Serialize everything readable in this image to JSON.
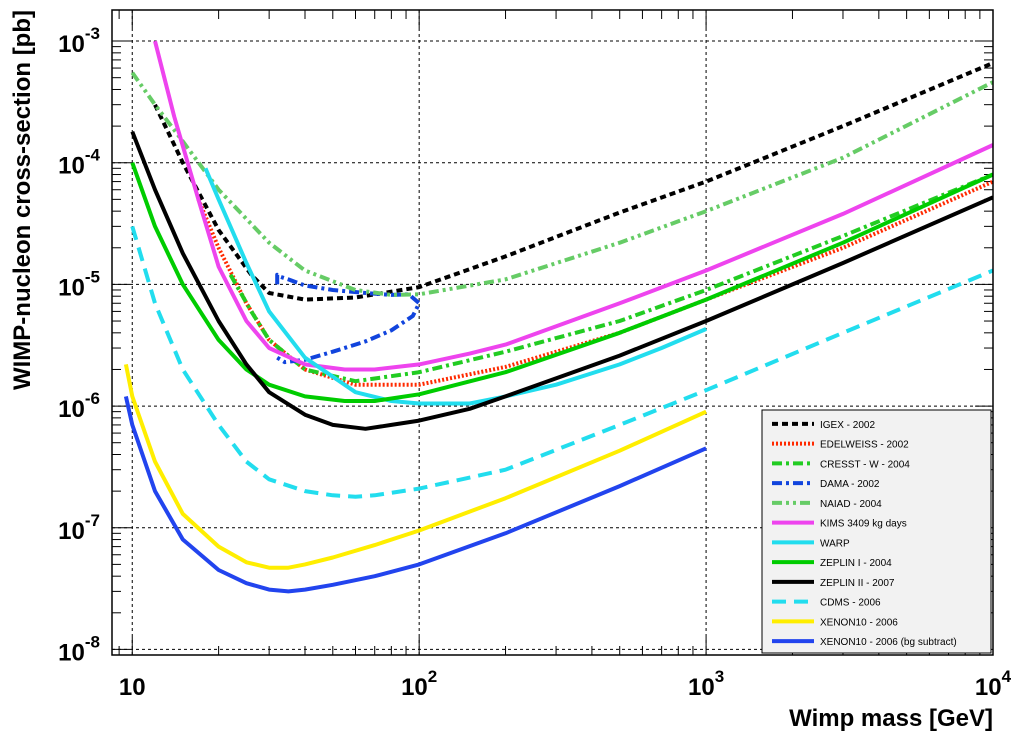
{
  "chart_data": {
    "type": "line",
    "title": "",
    "xlabel": "Wimp mass [GeV]",
    "ylabel": "WIMP-nucleon cross-section [pb]",
    "xscale": "log",
    "yscale": "log",
    "xlim": [
      8.5,
      10000
    ],
    "ylim": [
      9e-09,
      0.0018
    ],
    "grid": true,
    "legend_position": "bottom-right",
    "x_ticks": [
      {
        "value": 10,
        "base": "10",
        "exp": ""
      },
      {
        "value": 100,
        "base": "10",
        "exp": "2"
      },
      {
        "value": 1000,
        "base": "10",
        "exp": "3"
      },
      {
        "value": 10000,
        "base": "10",
        "exp": "4"
      }
    ],
    "y_ticks": [
      {
        "value": 1e-08,
        "base": "10",
        "exp": "-8"
      },
      {
        "value": 1e-07,
        "base": "10",
        "exp": "-7"
      },
      {
        "value": 1e-06,
        "base": "10",
        "exp": "-6"
      },
      {
        "value": 1e-05,
        "base": "10",
        "exp": "-5"
      },
      {
        "value": 0.0001,
        "base": "10",
        "exp": "-4"
      },
      {
        "value": 0.001,
        "base": "10",
        "exp": "-3"
      }
    ],
    "series": [
      {
        "name": "IGEX - 2002",
        "color": "#000000",
        "style": "dense-dash",
        "x": [
          12,
          15,
          20,
          26,
          30,
          40,
          60,
          100,
          200,
          500,
          1000,
          3000,
          10000
        ],
        "y": [
          0.0003,
          0.0001,
          2.8e-05,
          1.2e-05,
          8.5e-06,
          7.5e-06,
          7.8e-06,
          9.5e-06,
          1.7e-05,
          3.9e-05,
          7e-05,
          0.0002,
          0.00066
        ]
      },
      {
        "name": "EDELWEISS - 2002",
        "color": "#ff2a00",
        "style": "dots",
        "x": [
          17,
          20,
          25,
          30,
          40,
          60,
          100,
          200,
          500,
          1000,
          3000,
          10000
        ],
        "y": [
          5e-05,
          2e-05,
          7e-06,
          3.5e-06,
          2e-06,
          1.5e-06,
          1.5e-06,
          2.1e-06,
          4e-06,
          7.5e-06,
          2e-05,
          7e-05
        ]
      },
      {
        "name": "CRESST - W - 2004",
        "color": "#22cc22",
        "style": "dash-dot",
        "x": [
          22,
          26,
          30,
          40,
          60,
          100,
          200,
          500,
          1000,
          3000,
          10000
        ],
        "y": [
          1.2e-05,
          6e-06,
          3.5e-06,
          2e-06,
          1.6e-06,
          1.9e-06,
          2.8e-06,
          5e-06,
          9e-06,
          2.5e-05,
          8e-05
        ]
      },
      {
        "name": "DAMA - 2002",
        "color": "#1144dd",
        "style": "dash-dot",
        "x": [
          32,
          32,
          33,
          35,
          40,
          50,
          65,
          80,
          92,
          100,
          95,
          80,
          65,
          50,
          40,
          34,
          32
        ],
        "y": [
          1e-05,
          1.2e-05,
          1.15e-05,
          1.1e-05,
          9.8e-06,
          9e-06,
          8.5e-06,
          8.2e-06,
          8.3e-06,
          7e-06,
          5.5e-06,
          4.2e-06,
          3.4e-06,
          2.8e-06,
          2.4e-06,
          2.3e-06,
          2.5e-06
        ]
      },
      {
        "name": "NAIAD - 2004",
        "color": "#66cc66",
        "style": "dash-dot-dot",
        "x": [
          10,
          12,
          15,
          20,
          30,
          40,
          60,
          80,
          100,
          200,
          500,
          1000,
          3000,
          10000
        ],
        "y": [
          0.00055,
          0.0003,
          0.00015,
          6e-05,
          2.2e-05,
          1.3e-05,
          9e-06,
          8.2e-06,
          8.3e-06,
          1.1e-05,
          2.2e-05,
          4e-05,
          0.00011,
          0.00046
        ]
      },
      {
        "name": "KIMS 3409 kg days",
        "color": "#ee44ee",
        "style": "solid",
        "x": [
          12,
          14,
          17,
          20,
          25,
          30,
          40,
          55,
          70,
          100,
          150,
          200,
          500,
          1000,
          3000,
          10000
        ],
        "y": [
          0.001,
          0.00024,
          5e-05,
          1.4e-05,
          5e-06,
          3e-06,
          2.2e-06,
          2e-06,
          2e-06,
          2.2e-06,
          2.7e-06,
          3.2e-06,
          7e-06,
          1.3e-05,
          3.8e-05,
          0.00014
        ]
      },
      {
        "name": "WARP",
        "color": "#22ddee",
        "style": "solid",
        "x": [
          18,
          20,
          25,
          30,
          40,
          60,
          80,
          100,
          150,
          200,
          300,
          500,
          700,
          1000
        ],
        "y": [
          9e-05,
          5e-05,
          1.5e-05,
          6e-06,
          2.5e-06,
          1.3e-06,
          1.1e-06,
          1.05e-06,
          1.05e-06,
          1.2e-06,
          1.5e-06,
          2.2e-06,
          3e-06,
          4.3e-06
        ]
      },
      {
        "name": "ZEPLIN I - 2004",
        "color": "#00cc00",
        "style": "solid",
        "x": [
          10,
          12,
          15,
          20,
          25,
          30,
          40,
          55,
          70,
          100,
          200,
          500,
          1000,
          3000,
          10000
        ],
        "y": [
          0.0001,
          3e-05,
          1e-05,
          3.5e-06,
          2e-06,
          1.5e-06,
          1.2e-06,
          1.1e-06,
          1.1e-06,
          1.25e-06,
          1.9e-06,
          4e-06,
          7.5e-06,
          2.2e-05,
          8e-05
        ]
      },
      {
        "name": "ZEPLIN II - 2007",
        "color": "#000000",
        "style": "solid",
        "x": [
          10,
          12,
          15,
          20,
          25,
          30,
          40,
          50,
          65,
          80,
          100,
          150,
          200,
          500,
          1000,
          3000,
          10000
        ],
        "y": [
          0.00018,
          6e-05,
          1.8e-05,
          5e-06,
          2.2e-06,
          1.3e-06,
          8.5e-07,
          7e-07,
          6.5e-07,
          7e-07,
          7.6e-07,
          9.5e-07,
          1.2e-06,
          2.6e-06,
          5e-06,
          1.5e-05,
          5.2e-05
        ]
      },
      {
        "name": "CDMS - 2006",
        "color": "#22ddee",
        "style": "dash",
        "x": [
          10,
          12,
          15,
          20,
          25,
          30,
          40,
          50,
          60,
          70,
          100,
          200,
          500,
          1000,
          3000,
          10000
        ],
        "y": [
          3e-05,
          7e-06,
          2e-06,
          7e-07,
          3.5e-07,
          2.5e-07,
          2e-07,
          1.85e-07,
          1.8e-07,
          1.85e-07,
          2.1e-07,
          3e-07,
          7e-07,
          1.35e-06,
          4e-06,
          1.3e-05
        ]
      },
      {
        "name": "XENON10 - 2006",
        "color": "#ffee00",
        "style": "solid",
        "x": [
          9.5,
          10,
          12,
          15,
          20,
          25,
          30,
          35,
          40,
          50,
          70,
          100,
          200,
          500,
          1000
        ],
        "y": [
          2.2e-06,
          1.2e-06,
          3.5e-07,
          1.3e-07,
          7e-08,
          5.2e-08,
          4.7e-08,
          4.7e-08,
          5e-08,
          5.7e-08,
          7.2e-08,
          9.5e-08,
          1.75e-07,
          4.3e-07,
          9e-07
        ]
      },
      {
        "name": "XENON10 - 2006 (bg subtract)",
        "color": "#2244ee",
        "style": "solid",
        "x": [
          9.5,
          10,
          12,
          15,
          20,
          25,
          30,
          35,
          40,
          50,
          70,
          100,
          200,
          500,
          1000
        ],
        "y": [
          1.2e-06,
          7e-07,
          2e-07,
          8e-08,
          4.5e-08,
          3.5e-08,
          3.1e-08,
          3e-08,
          3.1e-08,
          3.4e-08,
          4e-08,
          5e-08,
          9e-08,
          2.2e-07,
          4.5e-07
        ]
      }
    ]
  }
}
